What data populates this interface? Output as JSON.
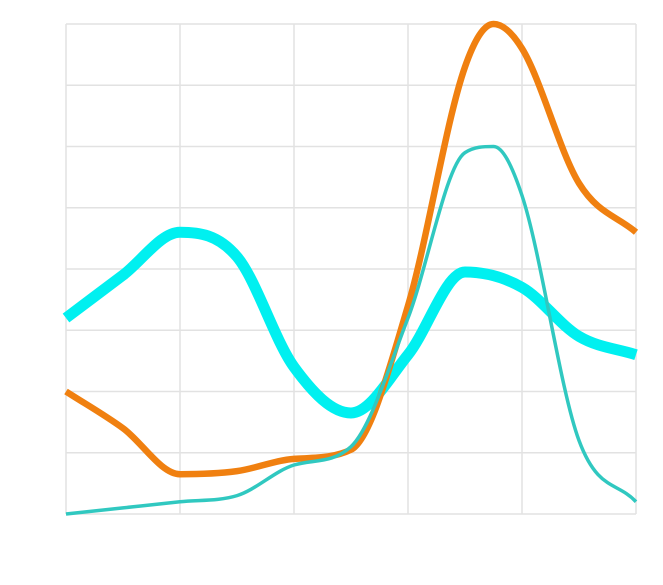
{
  "chart_data": {
    "type": "line",
    "title": "",
    "xlabel": "",
    "ylabel": "",
    "xlim": [
      0,
      5
    ],
    "ylim": [
      0,
      8
    ],
    "grid": true,
    "x_ticks": [
      0,
      1,
      2,
      3,
      4,
      5
    ],
    "y_ticks": [
      0,
      1,
      2,
      3,
      4,
      5,
      6,
      7,
      8
    ],
    "series": [
      {
        "color": "#00f0f0",
        "line_weight": "heavy",
        "points": [
          [
            0.0,
            3.2
          ],
          [
            0.5,
            3.9
          ],
          [
            1.0,
            4.6
          ],
          [
            1.5,
            4.2
          ],
          [
            2.0,
            2.4
          ],
          [
            2.5,
            1.65
          ],
          [
            3.0,
            2.6
          ],
          [
            3.5,
            3.95
          ],
          [
            4.0,
            3.7
          ],
          [
            4.5,
            2.9
          ],
          [
            5.0,
            2.6
          ]
        ]
      },
      {
        "color": "#f08010",
        "line_weight": "medium",
        "points": [
          [
            0.0,
            2.0
          ],
          [
            0.5,
            1.4
          ],
          [
            1.0,
            0.65
          ],
          [
            1.5,
            0.7
          ],
          [
            2.0,
            0.9
          ],
          [
            2.5,
            1.05
          ],
          [
            3.0,
            3.4
          ],
          [
            3.5,
            7.3
          ],
          [
            3.75,
            8.0
          ],
          [
            4.0,
            7.6
          ],
          [
            4.5,
            5.4
          ],
          [
            5.0,
            4.6
          ]
        ]
      },
      {
        "color": "#30c8c0",
        "line_weight": "light",
        "points": [
          [
            0.0,
            0.0
          ],
          [
            0.5,
            0.1
          ],
          [
            1.0,
            0.2
          ],
          [
            1.5,
            0.3
          ],
          [
            2.0,
            0.8
          ],
          [
            2.5,
            1.1
          ],
          [
            3.0,
            3.2
          ],
          [
            3.5,
            5.9
          ],
          [
            3.75,
            6.0
          ],
          [
            4.0,
            5.2
          ],
          [
            4.5,
            1.2
          ],
          [
            5.0,
            0.2
          ]
        ]
      }
    ]
  }
}
